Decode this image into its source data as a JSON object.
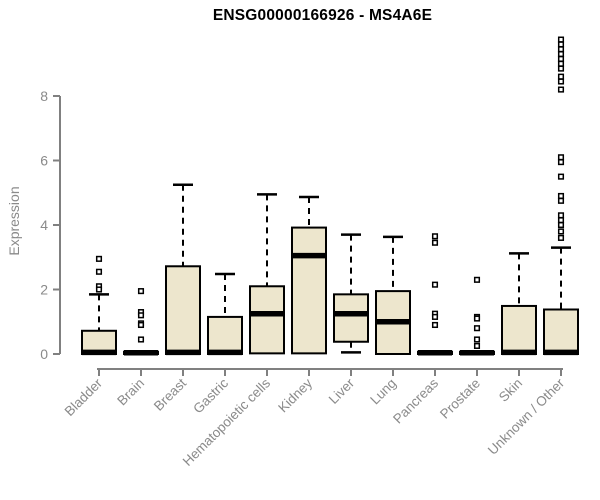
{
  "chart_data": {
    "type": "boxplot",
    "title": "ENSG00000166926 - MS4A6E",
    "ylabel": "Expression",
    "xlabel": "",
    "yticks": [
      0,
      2,
      4,
      6,
      8
    ],
    "ylim": [
      -0.6,
      9.95
    ],
    "grid": false,
    "legend": "none",
    "categories": [
      "Bladder",
      "Brain",
      "Breast",
      "Gastric",
      "Hematopoietic cells",
      "Kidney",
      "Liver",
      "Lung",
      "Pancreas",
      "Prostate",
      "Skin",
      "Unknown / Other"
    ],
    "boxes": [
      {
        "label": "Bladder",
        "low": 0,
        "q1": 0,
        "median": 0.05,
        "q3": 0.72,
        "high": 1.85,
        "outliers": [
          2.95,
          2.55,
          2.1,
          2.0
        ]
      },
      {
        "label": "Brain",
        "low": 0,
        "q1": 0,
        "median": 0.04,
        "q3": 0.07,
        "high": 0.07,
        "outliers": [
          1.95,
          1.3,
          1.2,
          0.95,
          0.9,
          0.45
        ]
      },
      {
        "label": "Breast",
        "low": 0,
        "q1": 0,
        "median": 0.05,
        "q3": 2.72,
        "high": 5.25,
        "outliers": []
      },
      {
        "label": "Gastric",
        "low": 0,
        "q1": 0,
        "median": 0.05,
        "q3": 1.15,
        "high": 2.48,
        "outliers": []
      },
      {
        "label": "Hematopoietic cells",
        "low": 0.02,
        "q1": 0.02,
        "median": 1.25,
        "q3": 2.1,
        "high": 4.95,
        "outliers": []
      },
      {
        "label": "Kidney",
        "low": 0.02,
        "q1": 0.02,
        "median": 3.05,
        "q3": 3.92,
        "high": 4.87,
        "outliers": []
      },
      {
        "label": "Liver",
        "low": 0.05,
        "q1": 0.38,
        "median": 1.25,
        "q3": 1.85,
        "high": 3.7,
        "outliers": []
      },
      {
        "label": "Lung",
        "low": 0,
        "q1": 0,
        "median": 1.0,
        "q3": 1.95,
        "high": 3.63,
        "outliers": []
      },
      {
        "label": "Pancreas",
        "low": 0,
        "q1": 0,
        "median": 0.04,
        "q3": 0.07,
        "high": 0.07,
        "outliers": [
          3.65,
          3.45,
          2.15,
          1.25,
          1.15,
          0.9
        ]
      },
      {
        "label": "Prostate",
        "low": 0,
        "q1": 0,
        "median": 0.04,
        "q3": 0.07,
        "high": 0.07,
        "outliers": [
          2.3,
          1.15,
          1.1,
          0.8,
          0.45,
          0.25
        ]
      },
      {
        "label": "Skin",
        "low": 0,
        "q1": 0,
        "median": 0.05,
        "q3": 1.49,
        "high": 3.12,
        "outliers": []
      },
      {
        "label": "Unknown / Other",
        "low": 0,
        "q1": 0,
        "median": 0.05,
        "q3": 1.38,
        "high": 3.3,
        "outliers": [
          9.75,
          9.6,
          9.45,
          9.3,
          9.15,
          9.0,
          8.85,
          8.6,
          8.45,
          8.2,
          6.1,
          5.95,
          5.5,
          4.9,
          4.75,
          4.3,
          4.15,
          4.0,
          3.8,
          3.6
        ]
      }
    ],
    "colors": {
      "box_fill": "#ede6cd",
      "box_stroke": "#000000",
      "median": "#000000",
      "axis": "#808080",
      "tick_label": "#8a8a8a",
      "title": "#000000",
      "background": "#ffffff"
    }
  }
}
